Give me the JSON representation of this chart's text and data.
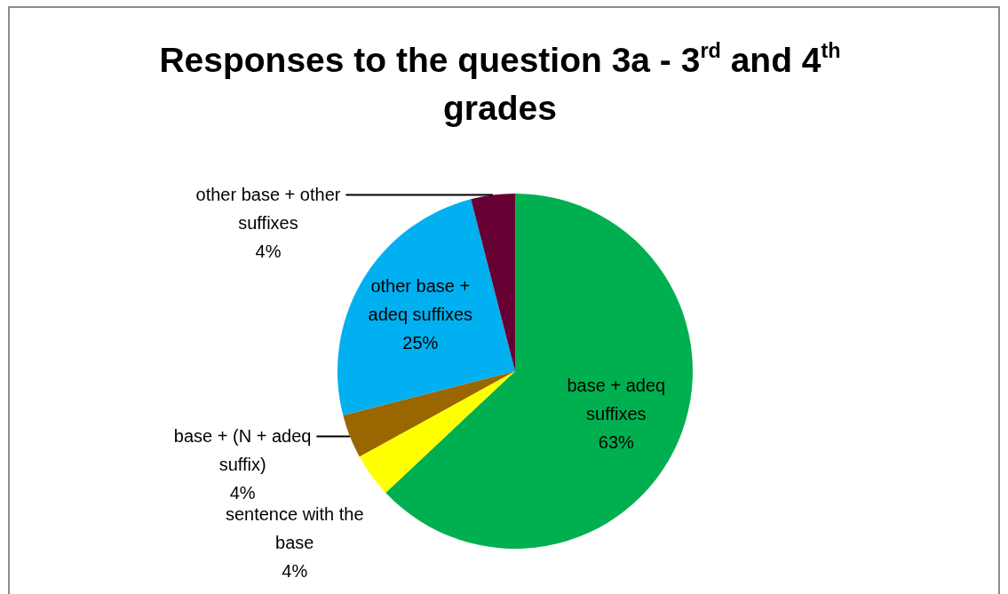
{
  "chart_data": {
    "type": "pie",
    "title": "Responses to the question 3a - 3$^{rd}$ and 4$^{th}$ grades",
    "categories": [
      "base + adeq suffixes",
      "sentence with the base",
      "base + (N + adeq suffix)",
      "other base + adeq suffixes",
      "other base + other suffixes"
    ],
    "values": [
      63,
      4,
      4,
      25,
      4
    ],
    "colors": [
      "#00b050",
      "#ffff00",
      "#996600",
      "#00b0f0",
      "#660033"
    ],
    "value_labels": [
      "63%",
      "4%",
      "4%",
      "25%",
      "4%"
    ]
  }
}
